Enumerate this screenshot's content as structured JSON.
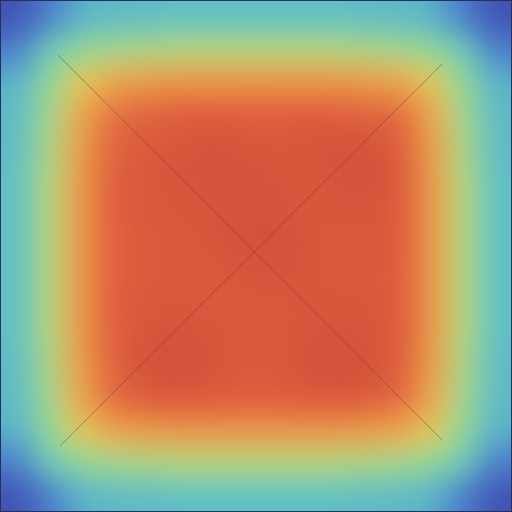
{
  "chart_data": {
    "type": "heatmap",
    "tick_labels": false,
    "color_range": [
      0,
      1
    ],
    "cells": [
      [
        0.08,
        0.18,
        0.3,
        0.32,
        0.32,
        0.33,
        0.33,
        0.33,
        0.33,
        0.33,
        0.33,
        0.32,
        0.32,
        0.3,
        0.18,
        0.08
      ],
      [
        0.18,
        0.38,
        0.46,
        0.48,
        0.49,
        0.5,
        0.5,
        0.5,
        0.5,
        0.5,
        0.5,
        0.49,
        0.48,
        0.46,
        0.38,
        0.18
      ],
      [
        0.3,
        0.46,
        0.58,
        0.64,
        0.66,
        0.67,
        0.67,
        0.67,
        0.67,
        0.67,
        0.67,
        0.66,
        0.64,
        0.58,
        0.46,
        0.3
      ],
      [
        0.32,
        0.48,
        0.64,
        0.74,
        0.77,
        0.78,
        0.79,
        0.78,
        0.78,
        0.79,
        0.78,
        0.77,
        0.76,
        0.64,
        0.48,
        0.32
      ],
      [
        0.32,
        0.49,
        0.66,
        0.77,
        0.81,
        0.83,
        0.86,
        0.84,
        0.83,
        0.84,
        0.85,
        0.86,
        0.8,
        0.66,
        0.49,
        0.32
      ],
      [
        0.33,
        0.5,
        0.67,
        0.78,
        0.82,
        0.84,
        0.85,
        0.86,
        0.84,
        0.83,
        0.85,
        0.87,
        0.81,
        0.67,
        0.5,
        0.33
      ],
      [
        0.33,
        0.5,
        0.67,
        0.78,
        0.82,
        0.83,
        0.84,
        0.87,
        0.86,
        0.83,
        0.83,
        0.84,
        0.81,
        0.67,
        0.5,
        0.33
      ],
      [
        0.33,
        0.5,
        0.67,
        0.78,
        0.81,
        0.82,
        0.83,
        0.86,
        0.88,
        0.84,
        0.82,
        0.83,
        0.81,
        0.67,
        0.5,
        0.33
      ],
      [
        0.33,
        0.5,
        0.67,
        0.78,
        0.81,
        0.82,
        0.82,
        0.84,
        0.85,
        0.84,
        0.82,
        0.82,
        0.8,
        0.67,
        0.5,
        0.33
      ],
      [
        0.33,
        0.5,
        0.67,
        0.78,
        0.82,
        0.83,
        0.82,
        0.82,
        0.82,
        0.83,
        0.83,
        0.83,
        0.8,
        0.67,
        0.5,
        0.33
      ],
      [
        0.33,
        0.5,
        0.67,
        0.78,
        0.84,
        0.86,
        0.84,
        0.82,
        0.82,
        0.84,
        0.86,
        0.84,
        0.8,
        0.67,
        0.5,
        0.33
      ],
      [
        0.32,
        0.49,
        0.66,
        0.77,
        0.86,
        0.88,
        0.85,
        0.82,
        0.82,
        0.85,
        0.88,
        0.86,
        0.8,
        0.66,
        0.49,
        0.32
      ],
      [
        0.32,
        0.48,
        0.64,
        0.76,
        0.8,
        0.82,
        0.8,
        0.79,
        0.79,
        0.8,
        0.82,
        0.8,
        0.76,
        0.64,
        0.48,
        0.32
      ],
      [
        0.3,
        0.46,
        0.58,
        0.64,
        0.66,
        0.67,
        0.67,
        0.67,
        0.67,
        0.67,
        0.67,
        0.66,
        0.64,
        0.58,
        0.46,
        0.3
      ],
      [
        0.18,
        0.38,
        0.46,
        0.48,
        0.49,
        0.5,
        0.5,
        0.5,
        0.5,
        0.5,
        0.5,
        0.49,
        0.48,
        0.46,
        0.38,
        0.18
      ],
      [
        0.08,
        0.18,
        0.3,
        0.32,
        0.32,
        0.33,
        0.33,
        0.33,
        0.33,
        0.33,
        0.33,
        0.32,
        0.32,
        0.3,
        0.18,
        0.08
      ]
    ]
  }
}
